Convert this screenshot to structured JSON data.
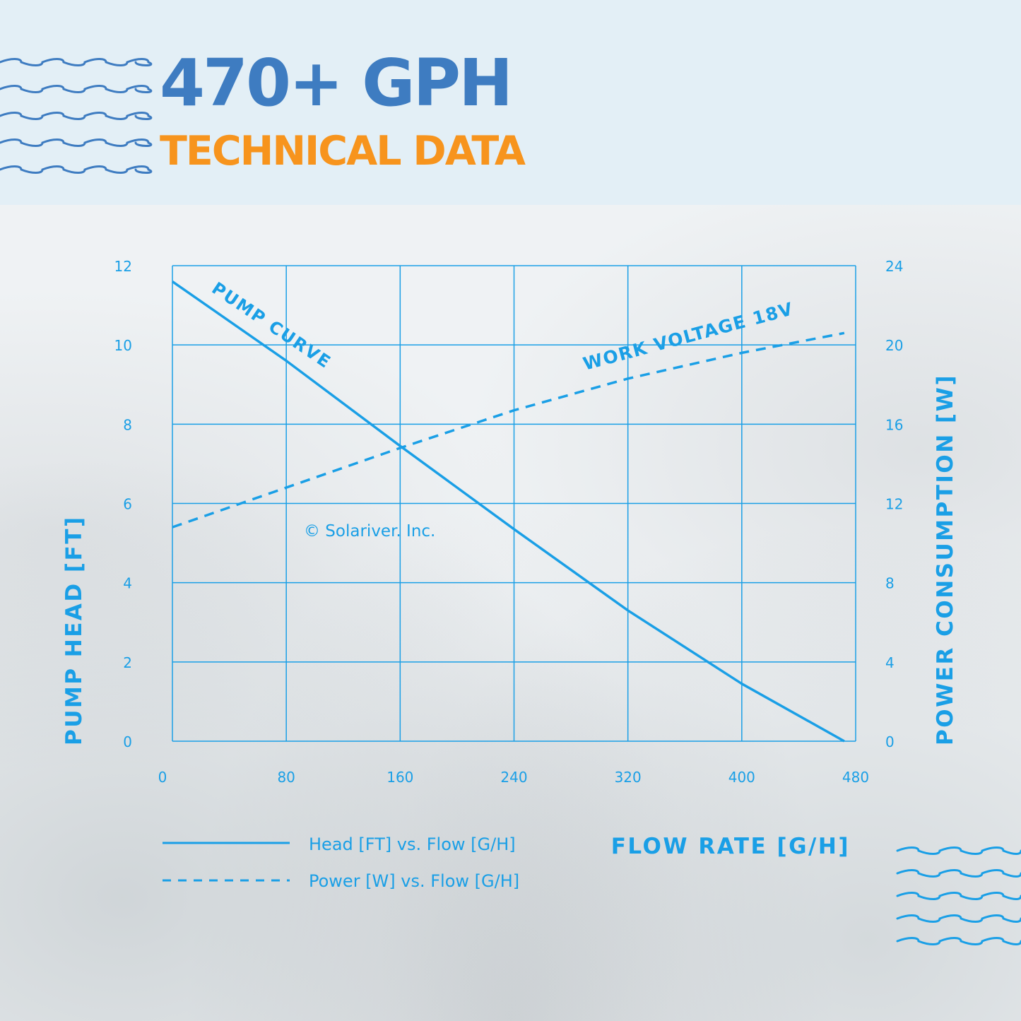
{
  "header": {
    "title": "470+ GPH",
    "subtitle": "TECHNICAL DATA"
  },
  "colors": {
    "title_blue": "#3e7cc1",
    "title_orange": "#f7941d",
    "chart_blue": "#1a9fe6",
    "wave_dark": "#3e7cc1",
    "wave_light": "#1a9fe6"
  },
  "chart_data": {
    "type": "line",
    "xlabel": "FLOW RATE [G/H]",
    "ylabel": "PUMP HEAD [FT]",
    "y2label": "POWER CONSUMPTION [W]",
    "xlim": [
      0,
      480
    ],
    "ylim": [
      0,
      12
    ],
    "y2lim": [
      0,
      24
    ],
    "x_ticks": [
      "0",
      "80",
      "160",
      "240",
      "320",
      "400",
      "480"
    ],
    "y_ticks": [
      "0",
      "2",
      "4",
      "6",
      "8",
      "10",
      "12"
    ],
    "y2_ticks": [
      "0",
      "4",
      "8",
      "12",
      "16",
      "20",
      "24"
    ],
    "grid": true,
    "series": [
      {
        "name": "Head [FT] vs. Flow [G/H]",
        "axis": "left",
        "style": "solid",
        "x": [
          0,
          80,
          160,
          240,
          320,
          400,
          472
        ],
        "y": [
          11.6,
          9.6,
          7.45,
          5.35,
          3.3,
          1.45,
          0
        ]
      },
      {
        "name": "Power [W] vs. Flow [G/H]",
        "axis": "right",
        "style": "dashed",
        "x": [
          0,
          80,
          160,
          240,
          320,
          400,
          472
        ],
        "y": [
          10.8,
          12.8,
          14.8,
          16.7,
          18.3,
          19.6,
          20.6
        ]
      }
    ],
    "annotations": [
      "PUMP CURVE",
      "WORK VOLTAGE 18V",
      "© Solariver. Inc."
    ],
    "legend": {
      "placement": "bottom-left",
      "entries": [
        "Head [FT] vs. Flow [G/H]",
        "Power [W] vs. Flow [G/H]"
      ]
    }
  }
}
